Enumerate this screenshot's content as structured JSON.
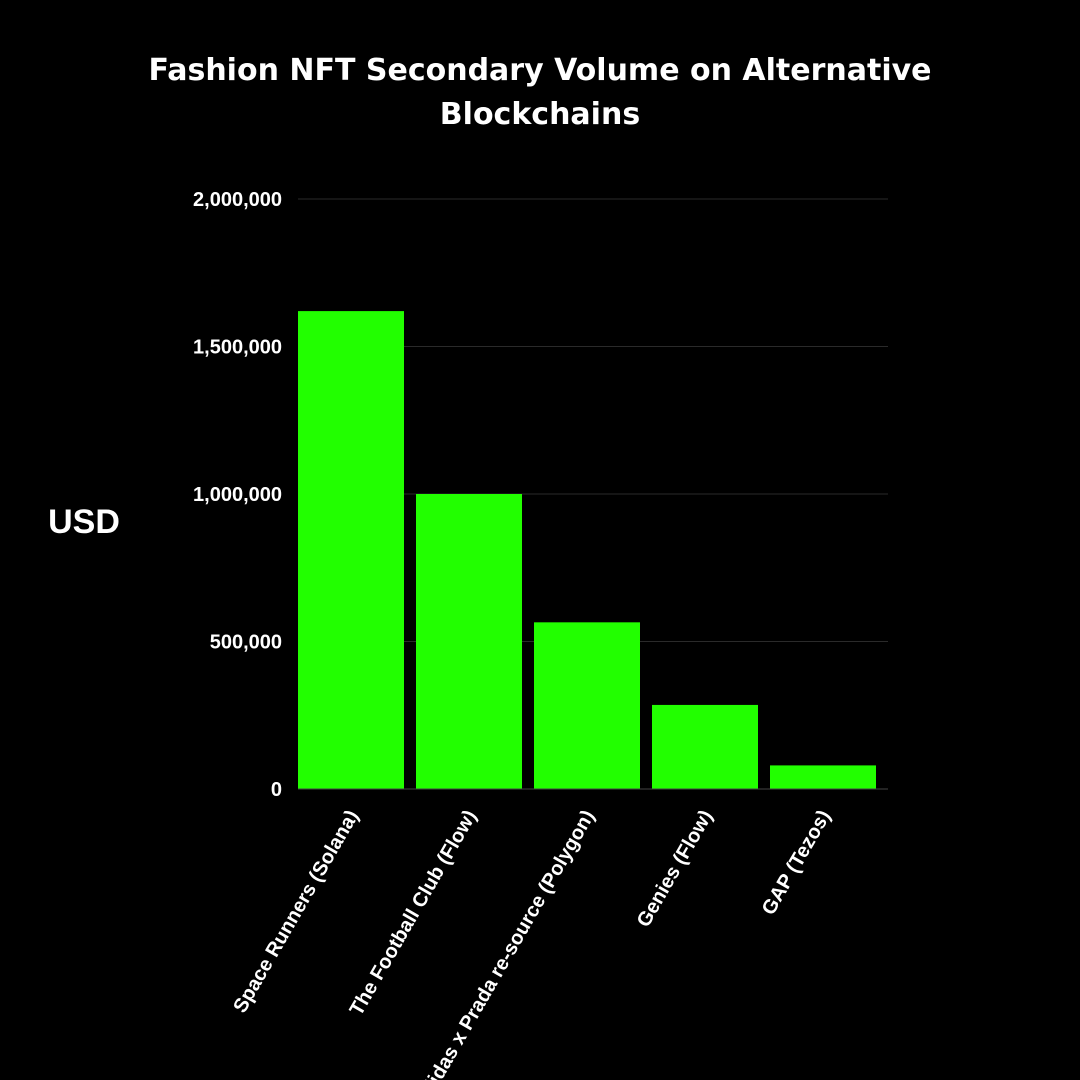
{
  "chart_data": {
    "type": "bar",
    "title": "Fashion NFT Secondary Volume on Alternative Blockchains",
    "title_lines": [
      "Fashion NFT Secondary Volume on Alternative",
      "Blockchains"
    ],
    "ylabel": "USD",
    "xlabel": "",
    "categories": [
      "Space Runners (Solana)",
      "The Football Club (Flow)",
      "adidas x Prada re-source (Polygon)",
      "Genies (Flow)",
      "GAP (Tezos)"
    ],
    "values": [
      1620000,
      1000000,
      565000,
      285000,
      80000
    ],
    "ylim": [
      0,
      2000000
    ],
    "y_ticks": [
      0,
      500000,
      1000000,
      1500000,
      2000000
    ],
    "y_tick_labels": [
      "0",
      "500,000",
      "1,000,000",
      "1,500,000",
      "2,000,000"
    ],
    "grid": true,
    "legend": "none",
    "colors": {
      "background": "#000000",
      "bar": "#22ff00",
      "text": "#ffffff",
      "grid": "#2a2a2a"
    }
  }
}
